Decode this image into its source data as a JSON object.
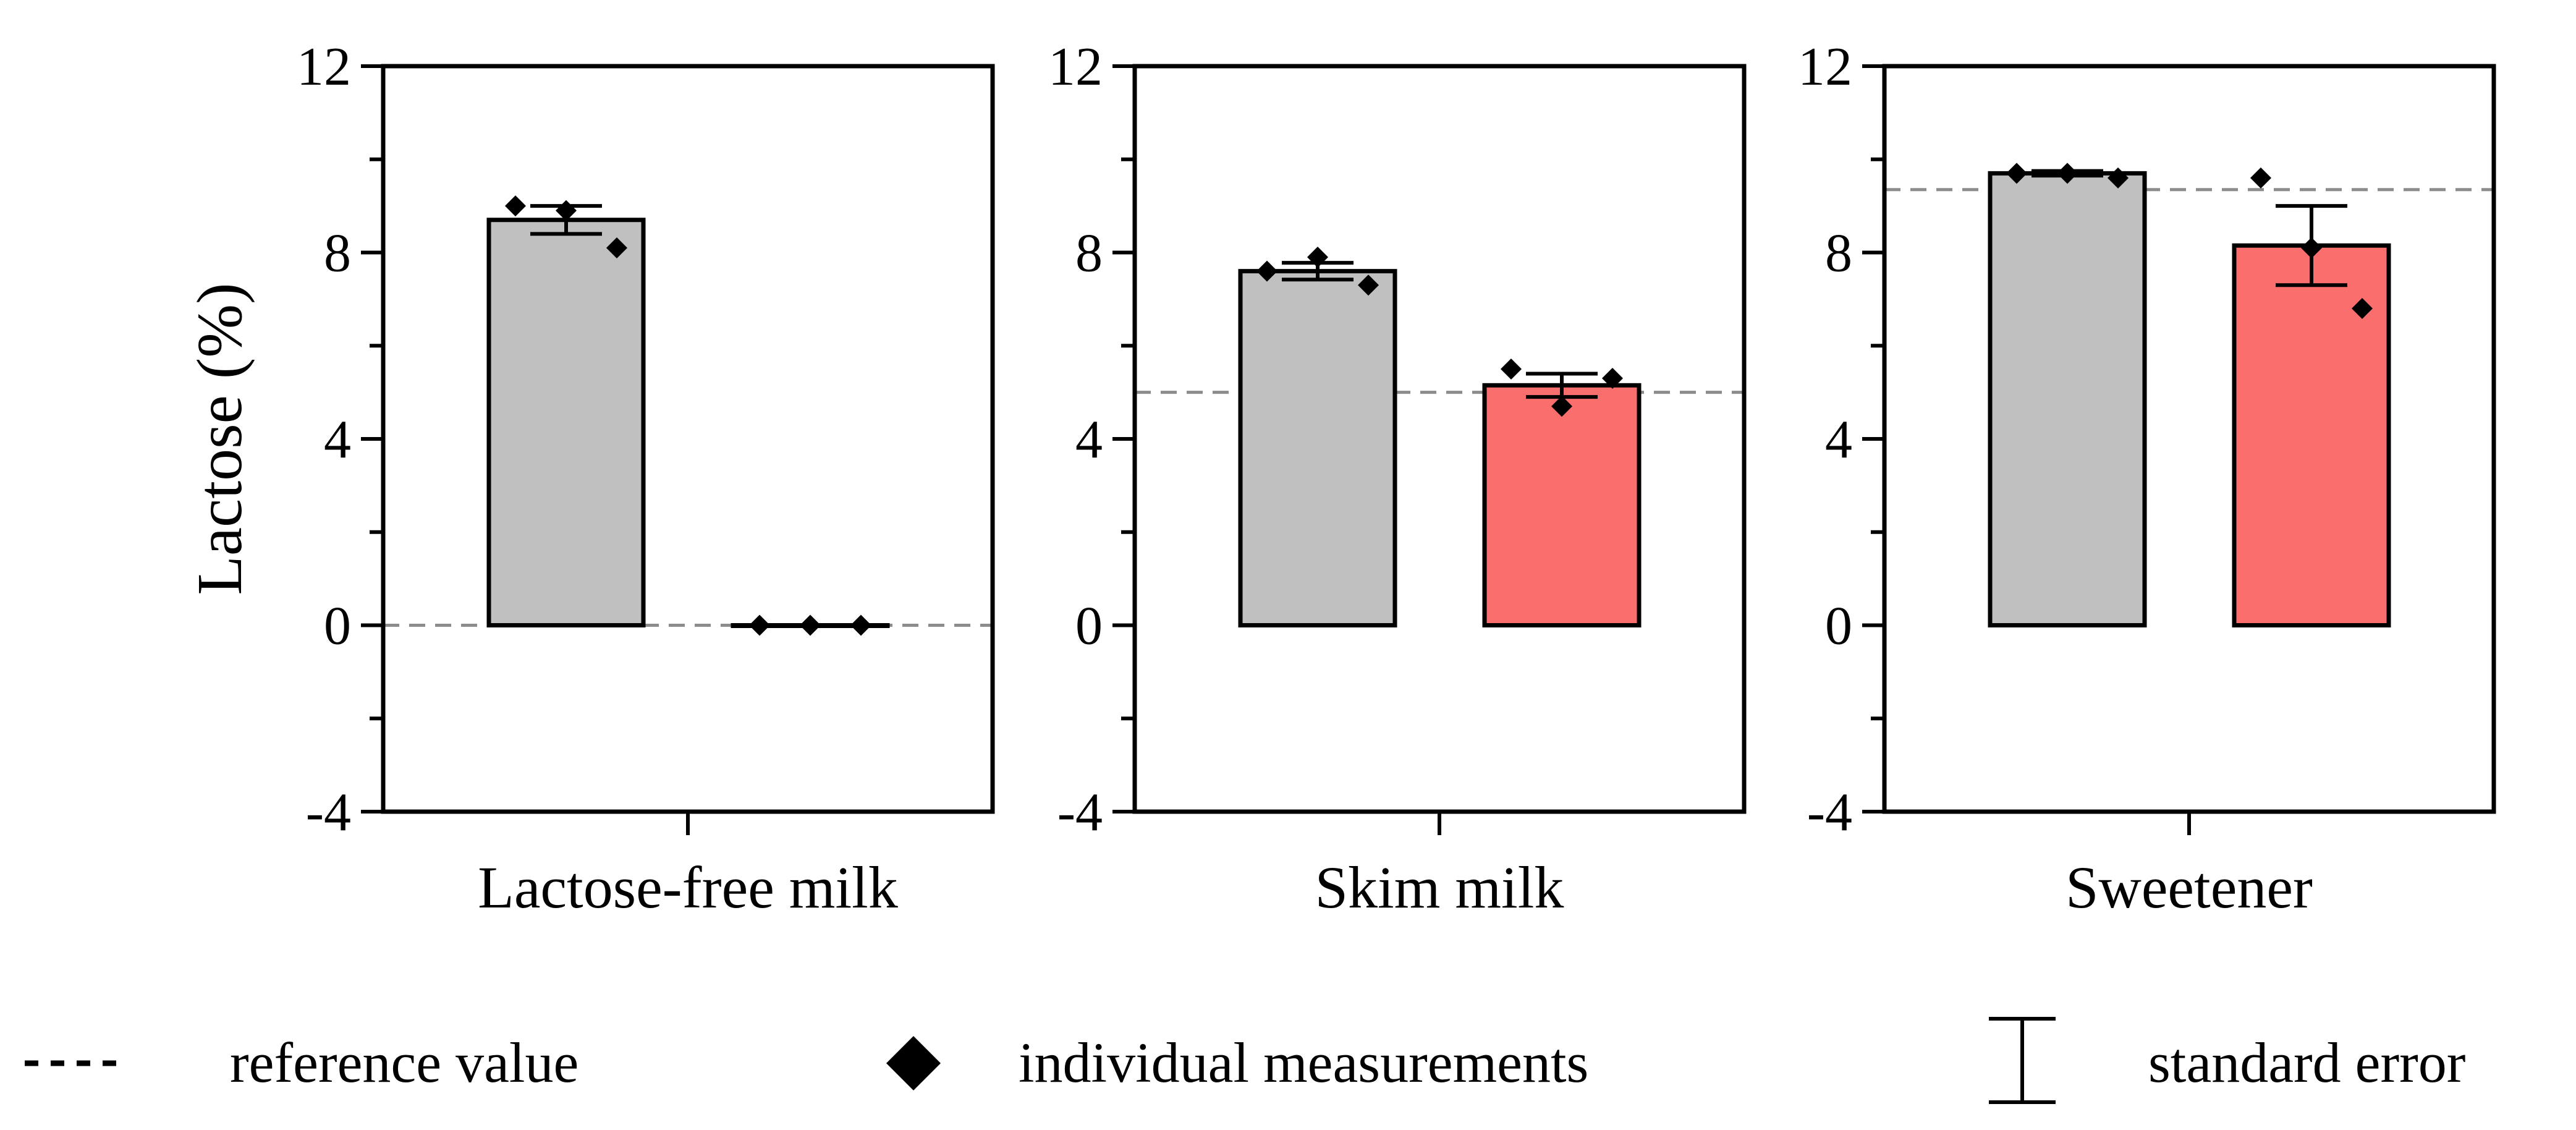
{
  "chart_data": {
    "type": "bar",
    "ylabel": "Lactose (%)",
    "ylim": [
      -4,
      12
    ],
    "yticks": [
      "-4",
      "0",
      "4",
      "8",
      "12"
    ],
    "panels": [
      {
        "category": "Lactose-free milk",
        "reference_value": 0,
        "bars": [
          {
            "series": "gray",
            "color": "#c0c0c0",
            "mean": 8.7,
            "se": 0.3,
            "points": [
              9.0,
              8.9,
              8.1
            ]
          },
          {
            "series": "red",
            "color": "#fb6e6e",
            "mean": 0.0,
            "se": 0.0,
            "points": [
              0.0,
              0.0,
              0.0
            ]
          }
        ]
      },
      {
        "category": "Skim milk",
        "reference_value": 5.0,
        "bars": [
          {
            "series": "gray",
            "color": "#c0c0c0",
            "mean": 7.6,
            "se": 0.18,
            "points": [
              7.6,
              7.9,
              7.3
            ]
          },
          {
            "series": "red",
            "color": "#fb6e6e",
            "mean": 5.15,
            "se": 0.25,
            "points": [
              5.5,
              4.7,
              5.3
            ]
          }
        ]
      },
      {
        "category": "Sweetener",
        "reference_value": 9.35,
        "bars": [
          {
            "series": "gray",
            "color": "#c0c0c0",
            "mean": 9.7,
            "se": 0.05,
            "points": [
              9.7,
              9.7,
              9.6
            ]
          },
          {
            "series": "red",
            "color": "#fb6e6e",
            "mean": 8.15,
            "se": 0.85,
            "points": [
              9.6,
              8.1,
              6.8
            ]
          }
        ]
      }
    ],
    "legend": [
      {
        "symbol": "dashed-line",
        "label": "reference value"
      },
      {
        "symbol": "diamond",
        "label": "individual measurements"
      },
      {
        "symbol": "error-bar",
        "label": "standard error"
      }
    ]
  }
}
